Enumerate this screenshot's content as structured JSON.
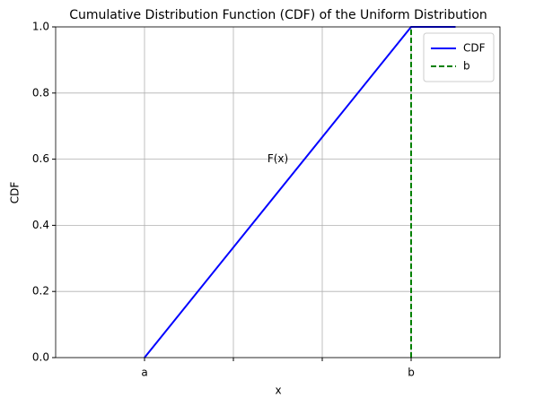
{
  "chart_data": {
    "type": "line",
    "title": "Cumulative Distribution Function (CDF) of the Uniform Distribution",
    "x_label": "x",
    "y_label": "CDF",
    "series": [
      {
        "name": "CDF",
        "color": "#0000ff",
        "style": "solid",
        "x": [
          0,
          3,
          3.5
        ],
        "values": [
          0,
          1,
          1
        ]
      },
      {
        "name": "b",
        "color": "#008000",
        "style": "dashed",
        "x": [
          3,
          3
        ],
        "values": [
          0,
          1
        ]
      }
    ],
    "annotations": [
      {
        "text": "F(x)",
        "x": 1.5,
        "y": 0.6
      }
    ],
    "xlim": [
      -1,
      4
    ],
    "xticks": [
      {
        "value": 0,
        "label": "a"
      },
      {
        "value": 1,
        "label": null
      },
      {
        "value": 2,
        "label": null
      },
      {
        "value": 3,
        "label": "b"
      }
    ],
    "ylim": [
      0,
      1
    ],
    "yticks": [
      {
        "value": 0,
        "label": "0.0"
      },
      0.2,
      0.4,
      0.6,
      0.8,
      {
        "value": 1,
        "label": "1.0"
      }
    ],
    "grid": true,
    "legend": "upper right"
  }
}
